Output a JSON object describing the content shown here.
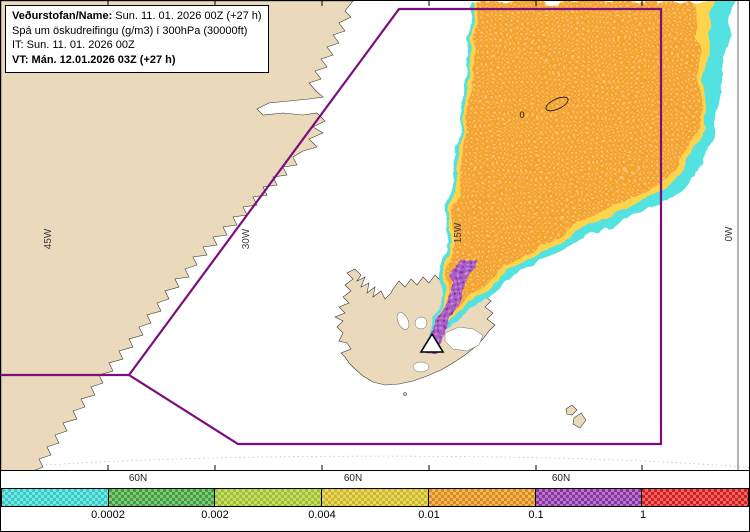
{
  "info_box": {
    "name_label": "Veðurstofan/Name:",
    "name_value": " Sun. 11. 01. 2026 00Z (+27 h)",
    "subtitle": "Spá um öskudreifingu (g/m3) í 300hPa (30000ft)",
    "init_time": "IT: Sun. 11. 01. 2026 00Z",
    "valid_time": "VT: Mán. 12.01.2026 03Z (+27 h)"
  },
  "map": {
    "meridian_labels": [
      "45W",
      "30W",
      "15W",
      "0W"
    ],
    "latitude_labels": [
      "60N",
      "60N",
      "60N"
    ],
    "contour_label": "0",
    "colors": {
      "land": "#ead9ba",
      "ocean": "#ffffff",
      "boundary": "#7d0c7d",
      "ash_lowest": "#52e2df",
      "ash_low": "#ffd44d",
      "ash_mid": "#f3a32d",
      "ash_high": "#a95fc5"
    }
  },
  "colorbar": {
    "segments": [
      {
        "color": "#38d7d3"
      },
      {
        "color": "#44a93e"
      },
      {
        "color": "#a6cc2e"
      },
      {
        "color": "#d8c326"
      },
      {
        "color": "#e89417"
      },
      {
        "color": "#9436ad"
      },
      {
        "color": "#e01f1f"
      }
    ],
    "labels": [
      "0.0002",
      "0.002",
      "0.004",
      "0.01",
      "0.1",
      "1"
    ]
  }
}
